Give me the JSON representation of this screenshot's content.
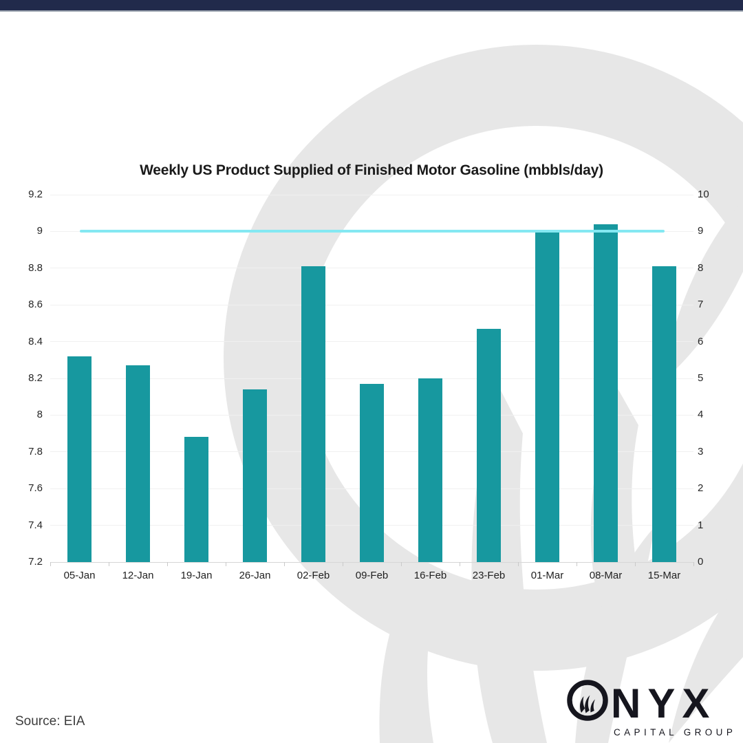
{
  "chart_data": {
    "type": "bar",
    "title": "Weekly US Product Supplied of Finished Motor Gasoline (mbbls/day)",
    "categories": [
      "05-Jan",
      "12-Jan",
      "19-Jan",
      "26-Jan",
      "02-Feb",
      "09-Feb",
      "16-Feb",
      "23-Feb",
      "01-Mar",
      "08-Mar",
      "15-Mar"
    ],
    "series": [
      {
        "name": "Weekly US product supplied of finished motor gasoline",
        "type": "bar",
        "axis": "left",
        "color": "#17989f",
        "values": [
          8.32,
          8.27,
          7.88,
          8.14,
          8.81,
          8.17,
          8.2,
          8.47,
          9.01,
          9.04,
          8.81
        ]
      },
      {
        "name": "Reference line at 9",
        "type": "line",
        "axis": "right",
        "color": "#84e8f2",
        "values": [
          9,
          9,
          9,
          9,
          9,
          9,
          9,
          9,
          9,
          9,
          9
        ]
      }
    ],
    "left_axis": {
      "min": 7.2,
      "max": 9.2,
      "step": 0.2,
      "tick_labels": [
        "9.2",
        "9",
        "8.8",
        "8.6",
        "8.4",
        "8.2",
        "8",
        "7.8",
        "7.6",
        "7.4",
        "7.2"
      ]
    },
    "right_axis": {
      "min": 0,
      "max": 10,
      "step": 1,
      "tick_labels": [
        "10",
        "9",
        "8",
        "7",
        "6",
        "5",
        "4",
        "3",
        "2",
        "1",
        "0"
      ]
    },
    "grid": true,
    "legend_position": "none"
  },
  "footer": {
    "source": "Source: EIA"
  },
  "logo": {
    "initial": "O",
    "letters": "NYX",
    "subtitle": "CAPITAL GROUP"
  },
  "colors": {
    "top_bar": "#212a4b",
    "top_bar_border": "#9aa2ae",
    "bar": "#17989f",
    "reference_line": "#84e8f2",
    "watermark": "#e7e7e7",
    "logo": "#16161e"
  }
}
